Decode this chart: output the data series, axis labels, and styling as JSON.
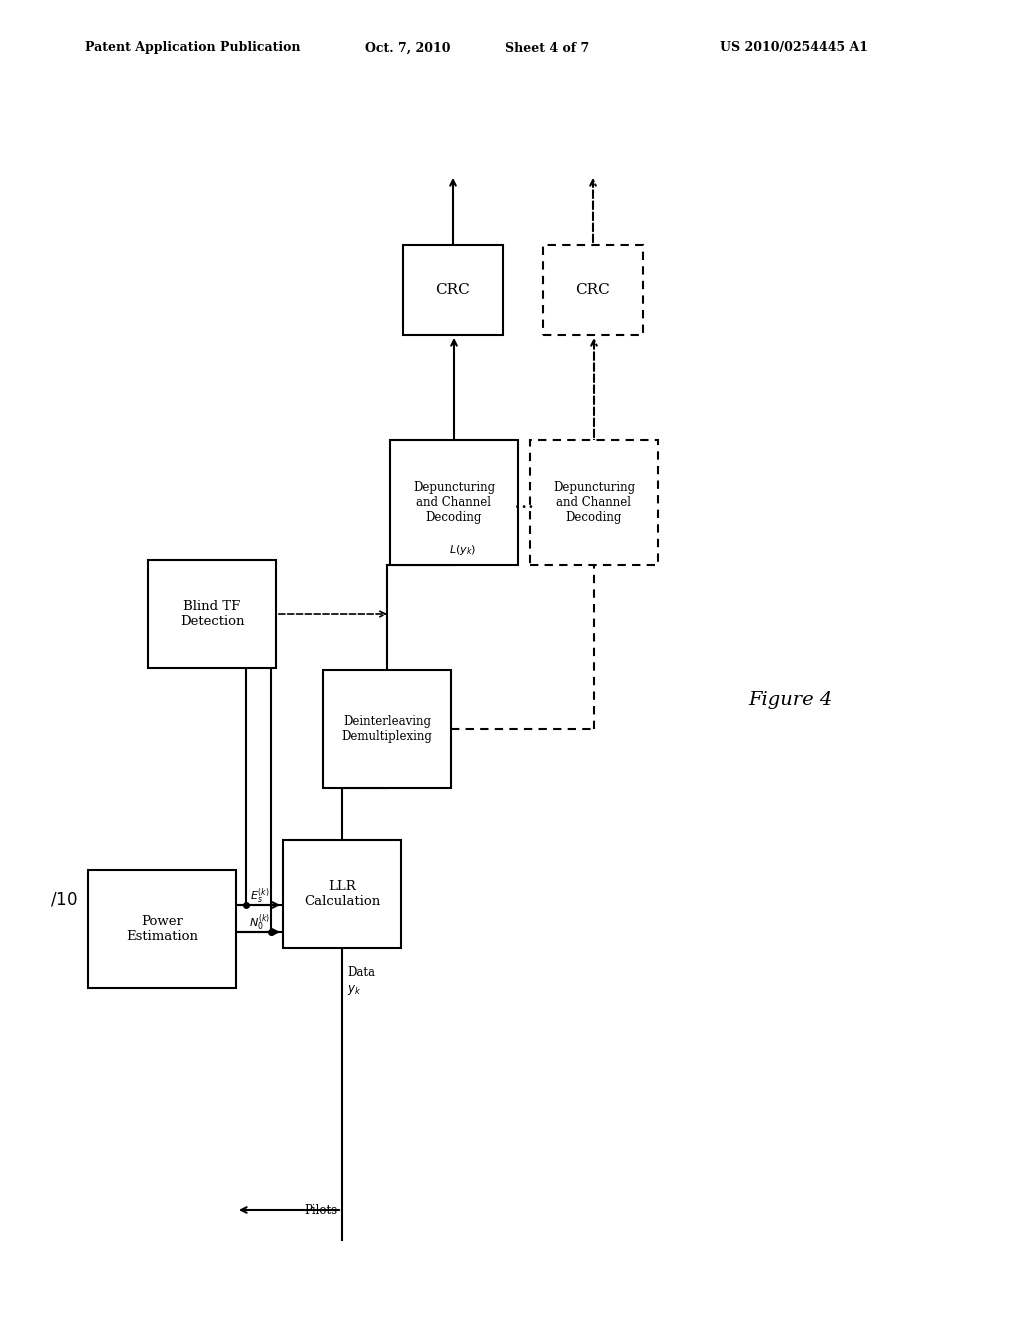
{
  "bg_color": "#ffffff",
  "header_text": "Patent Application Publication",
  "header_date": "Oct. 7, 2010",
  "header_sheet": "Sheet 4 of 7",
  "header_patent": "US 2010/0254445 A1",
  "figure_label": "Figure 4",
  "figsize": [
    10.24,
    13.2
  ],
  "dpi": 100
}
